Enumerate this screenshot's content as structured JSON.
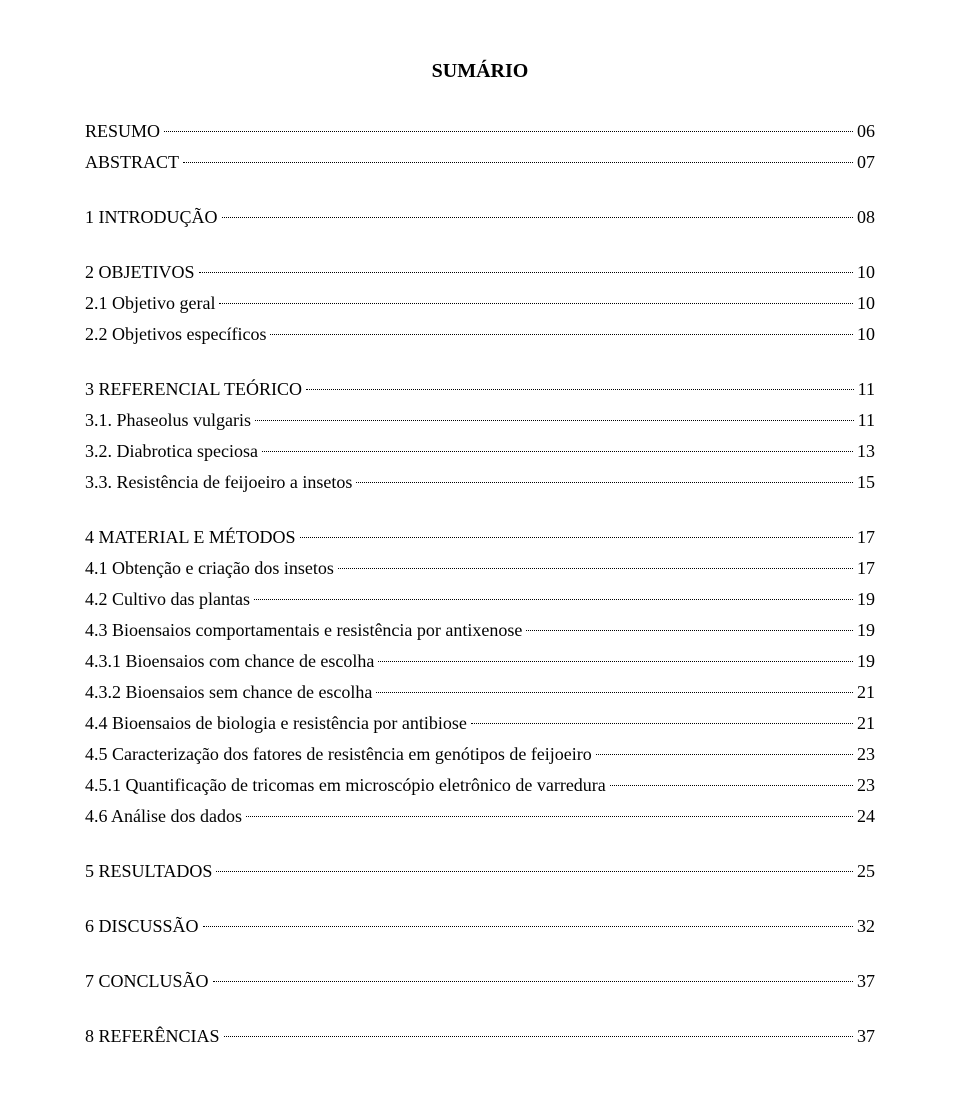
{
  "title": "SUMÁRIO",
  "entries": [
    {
      "label": "RESUMO",
      "page": "06",
      "spacer_before": false
    },
    {
      "label": "ABSTRACT",
      "page": "07",
      "spacer_before": false
    },
    {
      "label": "1 INTRODUÇÃO",
      "page": "08",
      "spacer_before": true
    },
    {
      "label": "2 OBJETIVOS",
      "page": "10",
      "spacer_before": true
    },
    {
      "label": "2.1 Objetivo geral",
      "page": "10",
      "spacer_before": false
    },
    {
      "label": "2.2 Objetivos específicos",
      "page": "10",
      "spacer_before": false
    },
    {
      "label": "3 REFERENCIAL TEÓRICO",
      "page": "11",
      "spacer_before": true
    },
    {
      "label": "3.1. Phaseolus vulgaris",
      "page": "11",
      "spacer_before": false
    },
    {
      "label": "3.2. Diabrotica speciosa",
      "page": "13",
      "spacer_before": false
    },
    {
      "label": "3.3. Resistência de feijoeiro a insetos",
      "page": "15",
      "spacer_before": false
    },
    {
      "label": "4 MATERIAL E MÉTODOS",
      "page": "17",
      "spacer_before": true
    },
    {
      "label": "4.1 Obtenção e criação dos insetos",
      "page": "17",
      "spacer_before": false
    },
    {
      "label": "4.2 Cultivo das plantas",
      "page": "19",
      "spacer_before": false
    },
    {
      "label": "4.3 Bioensaios comportamentais e resistência por antixenose",
      "page": "19",
      "spacer_before": false
    },
    {
      "label": "4.3.1 Bioensaios com chance de escolha",
      "page": "19",
      "spacer_before": false
    },
    {
      "label": "4.3.2 Bioensaios sem chance de escolha",
      "page": "21",
      "spacer_before": false
    },
    {
      "label": "4.4 Bioensaios de biologia e resistência por antibiose",
      "page": "21",
      "spacer_before": false
    },
    {
      "label": "4.5 Caracterização dos fatores de resistência em genótipos de feijoeiro",
      "page": "23",
      "spacer_before": false
    },
    {
      "label": "4.5.1 Quantificação de tricomas em microscópio eletrônico de varredura",
      "page": "23",
      "spacer_before": false
    },
    {
      "label": "4.6 Análise dos dados",
      "page": "24",
      "spacer_before": false
    },
    {
      "label": "5 RESULTADOS",
      "page": "25",
      "spacer_before": true
    },
    {
      "label": "6 DISCUSSÃO",
      "page": "32",
      "spacer_before": true
    },
    {
      "label": "7 CONCLUSÃO",
      "page": "37",
      "spacer_before": true
    },
    {
      "label": "8 REFERÊNCIAS",
      "page": "37",
      "spacer_before": true
    }
  ],
  "colors": {
    "background": "#ffffff",
    "text": "#000000"
  },
  "typography": {
    "font_family": "Times New Roman",
    "title_fontsize": 20,
    "entry_fontsize": 18,
    "title_fontweight": "bold"
  }
}
